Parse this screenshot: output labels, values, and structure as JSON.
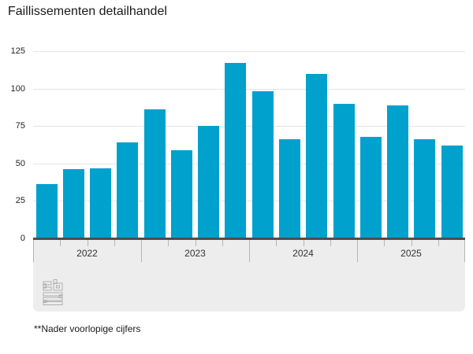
{
  "chart_data": {
    "type": "bar",
    "title": "Faillissementen detailhandel",
    "categories": [
      "2022 I",
      "2022 II",
      "2022 III",
      "2022 IV",
      "2023 I",
      "2023 II",
      "2023 III",
      "2023 IV",
      "2024 I",
      "2024 II",
      "2024 III",
      "2024 IV",
      "2025 I",
      "2025 II",
      "2025 III",
      "2025 IV"
    ],
    "values": [
      36,
      46,
      47,
      64,
      86,
      59,
      75,
      117,
      98,
      66,
      110,
      90,
      68,
      89,
      66,
      62
    ],
    "year_labels": [
      "2022",
      "2023",
      "2024",
      "2025"
    ],
    "quarters_per_year": 4,
    "xlabel": "",
    "ylabel": "",
    "ylim": [
      0,
      125
    ],
    "yticks": [
      0,
      25,
      50,
      75,
      100,
      125
    ],
    "grid": true,
    "legend": "none",
    "bar_color": "#00a1cd",
    "footnote": "**Nader voorlopige cijfers",
    "logo": "cbs-logo"
  }
}
